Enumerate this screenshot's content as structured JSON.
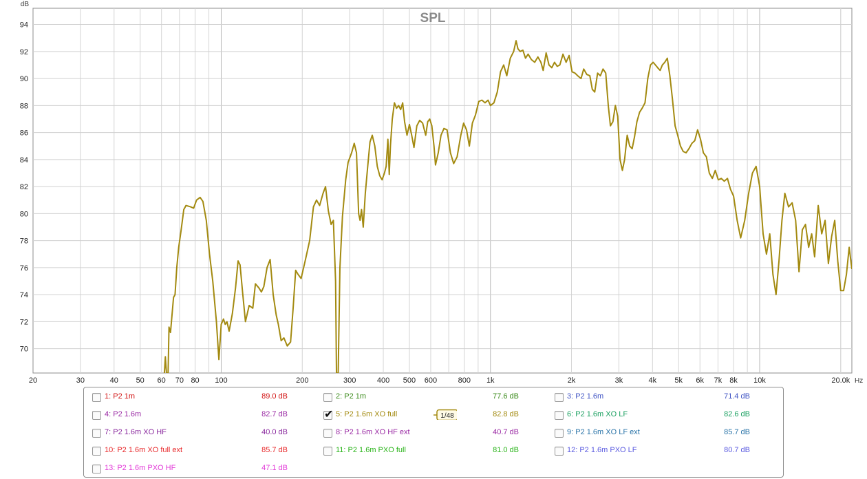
{
  "chart_data": {
    "type": "line",
    "title": "SPL",
    "ylabel": "dB",
    "xlabel": "Hz",
    "xscale": "log",
    "xlim": [
      20,
      20000
    ],
    "ylim": [
      68.2,
      95.2
    ],
    "x_ticks": [
      20,
      30,
      40,
      50,
      60,
      70,
      80,
      100,
      200,
      300,
      400,
      500,
      600,
      800,
      1000,
      2000,
      3000,
      4000,
      5000,
      6000,
      7000,
      8000,
      10000,
      20000
    ],
    "x_tick_labels": [
      "20",
      "30",
      "40",
      "50",
      "60",
      "70",
      "80",
      "100",
      "200",
      "300",
      "400",
      "500",
      "600",
      "800",
      "1k",
      "2k",
      "3k",
      "4k",
      "5k",
      "6k",
      "7k",
      "8k",
      "10k",
      "20.0k"
    ],
    "y_ticks": [
      70,
      72,
      74,
      76,
      78,
      80,
      82,
      84,
      86,
      88,
      90,
      92,
      94
    ],
    "y_tick_labels": [
      "70",
      "72",
      "74",
      "76",
      "78",
      "80",
      "82",
      "84",
      "86",
      "88",
      "90",
      "92",
      "94"
    ],
    "grid": true,
    "series": [
      {
        "name": "5: P2 1.6m XO full",
        "color": "#a38a10",
        "points": [
          [
            61.5,
            68.2
          ],
          [
            62.0,
            69.4
          ],
          [
            62.6,
            68.2
          ],
          [
            63.5,
            68.2
          ],
          [
            64.0,
            71.6
          ],
          [
            64.8,
            71.2
          ],
          [
            66.5,
            73.8
          ],
          [
            67.4,
            74.0
          ],
          [
            68.4,
            76.0
          ],
          [
            69.5,
            77.5
          ],
          [
            71.0,
            78.8
          ],
          [
            72.6,
            80.3
          ],
          [
            74.0,
            80.6
          ],
          [
            77.0,
            80.5
          ],
          [
            79.0,
            80.4
          ],
          [
            81.0,
            81.0
          ],
          [
            83.5,
            81.2
          ],
          [
            85.5,
            80.9
          ],
          [
            88.0,
            79.5
          ],
          [
            90.5,
            77.0
          ],
          [
            93.0,
            75.0
          ],
          [
            96.0,
            72.0
          ],
          [
            98.0,
            69.2
          ],
          [
            100.0,
            71.8
          ],
          [
            102.0,
            72.2
          ],
          [
            103.5,
            71.8
          ],
          [
            105.0,
            72.0
          ],
          [
            107.0,
            71.3
          ],
          [
            110.0,
            72.6
          ],
          [
            113.0,
            74.5
          ],
          [
            115.5,
            76.5
          ],
          [
            117.5,
            76.2
          ],
          [
            120.0,
            74.2
          ],
          [
            123.0,
            72.0
          ],
          [
            127.0,
            73.2
          ],
          [
            131.0,
            73.0
          ],
          [
            134.0,
            74.8
          ],
          [
            138.0,
            74.5
          ],
          [
            141.0,
            74.2
          ],
          [
            144.0,
            74.6
          ],
          [
            148.0,
            76.0
          ],
          [
            152.0,
            76.6
          ],
          [
            156.0,
            74.0
          ],
          [
            160.0,
            72.5
          ],
          [
            163.0,
            71.8
          ],
          [
            167.0,
            70.6
          ],
          [
            171.0,
            70.8
          ],
          [
            176.0,
            70.2
          ],
          [
            181.0,
            70.5
          ],
          [
            185.0,
            73.0
          ],
          [
            189.0,
            75.8
          ],
          [
            193.0,
            75.5
          ],
          [
            198.0,
            75.2
          ],
          [
            205.0,
            76.5
          ],
          [
            213.0,
            78.0
          ],
          [
            220.0,
            80.5
          ],
          [
            226.0,
            81.0
          ],
          [
            232.0,
            80.6
          ],
          [
            239.0,
            81.5
          ],
          [
            244.0,
            82.0
          ],
          [
            250.0,
            80.2
          ],
          [
            256.0,
            79.2
          ],
          [
            261.0,
            79.5
          ],
          [
            266.0,
            75.0
          ],
          [
            268.0,
            68.2
          ],
          [
            272.0,
            68.2
          ],
          [
            276.0,
            76.0
          ],
          [
            282.0,
            79.8
          ],
          [
            290.0,
            82.5
          ],
          [
            296.0,
            83.8
          ],
          [
            305.0,
            84.5
          ],
          [
            312.0,
            85.2
          ],
          [
            318.0,
            84.5
          ],
          [
            324.0,
            80.0
          ],
          [
            328.0,
            79.5
          ],
          [
            332.0,
            80.3
          ],
          [
            337.0,
            79.0
          ],
          [
            343.0,
            81.5
          ],
          [
            350.0,
            83.5
          ],
          [
            357.0,
            85.3
          ],
          [
            364.0,
            85.8
          ],
          [
            372.0,
            85.0
          ],
          [
            380.0,
            83.5
          ],
          [
            388.0,
            82.8
          ],
          [
            396.0,
            82.5
          ],
          [
            404.0,
            83.0
          ],
          [
            410.0,
            83.5
          ],
          [
            416.0,
            85.5
          ],
          [
            421.0,
            82.9
          ],
          [
            425.0,
            85.0
          ],
          [
            432.0,
            87.0
          ],
          [
            440.0,
            88.2
          ],
          [
            448.0,
            87.8
          ],
          [
            456.0,
            88.0
          ],
          [
            464.0,
            87.7
          ],
          [
            472.0,
            88.2
          ],
          [
            480.0,
            86.8
          ],
          [
            490.0,
            85.8
          ],
          [
            500.0,
            86.6
          ],
          [
            510.0,
            85.8
          ],
          [
            520.0,
            84.9
          ],
          [
            533.0,
            86.5
          ],
          [
            546.0,
            86.9
          ],
          [
            560.0,
            86.7
          ],
          [
            575.0,
            85.8
          ],
          [
            585.0,
            86.8
          ],
          [
            595.0,
            87.0
          ],
          [
            606.0,
            86.5
          ],
          [
            617.0,
            85.0
          ],
          [
            625.0,
            83.6
          ],
          [
            640.0,
            84.5
          ],
          [
            655.0,
            85.8
          ],
          [
            672.0,
            86.3
          ],
          [
            690.0,
            86.2
          ],
          [
            710.0,
            84.5
          ],
          [
            730.0,
            83.7
          ],
          [
            752.0,
            84.2
          ],
          [
            776.0,
            85.8
          ],
          [
            795.0,
            86.7
          ],
          [
            815.0,
            86.2
          ],
          [
            835.0,
            85.0
          ],
          [
            857.0,
            86.7
          ],
          [
            880.0,
            87.3
          ],
          [
            905.0,
            88.3
          ],
          [
            930.0,
            88.4
          ],
          [
            955.0,
            88.2
          ],
          [
            980.0,
            88.4
          ],
          [
            1000.0,
            88.0
          ],
          [
            1030.0,
            88.2
          ],
          [
            1060.0,
            89.0
          ],
          [
            1090.0,
            90.5
          ],
          [
            1120.0,
            91.0
          ],
          [
            1150.0,
            90.2
          ],
          [
            1185.0,
            91.5
          ],
          [
            1220.0,
            92.0
          ],
          [
            1245.0,
            92.8
          ],
          [
            1265.0,
            92.2
          ],
          [
            1290.0,
            92.0
          ],
          [
            1320.0,
            92.1
          ],
          [
            1350.0,
            91.5
          ],
          [
            1380.0,
            91.8
          ],
          [
            1420.0,
            91.4
          ],
          [
            1460.0,
            91.2
          ],
          [
            1500.0,
            91.6
          ],
          [
            1540.0,
            91.2
          ],
          [
            1570.0,
            90.6
          ],
          [
            1610.0,
            91.9
          ],
          [
            1650.0,
            91.0
          ],
          [
            1690.0,
            90.8
          ],
          [
            1730.0,
            91.2
          ],
          [
            1770.0,
            90.9
          ],
          [
            1810.0,
            91.0
          ],
          [
            1860.0,
            91.8
          ],
          [
            1910.0,
            91.2
          ],
          [
            1960.0,
            91.7
          ],
          [
            2010.0,
            90.5
          ],
          [
            2060.0,
            90.4
          ],
          [
            2110.0,
            90.2
          ],
          [
            2170.0,
            90.0
          ],
          [
            2220.0,
            90.7
          ],
          [
            2280.0,
            90.3
          ],
          [
            2340.0,
            90.2
          ],
          [
            2390.0,
            89.2
          ],
          [
            2440.0,
            89.0
          ],
          [
            2500.0,
            90.4
          ],
          [
            2560.0,
            90.2
          ],
          [
            2620.0,
            90.7
          ],
          [
            2680.0,
            90.4
          ],
          [
            2740.0,
            88.0
          ],
          [
            2790.0,
            86.5
          ],
          [
            2850.0,
            86.8
          ],
          [
            2910.0,
            88.0
          ],
          [
            2970.0,
            87.2
          ],
          [
            3030.0,
            84.0
          ],
          [
            3090.0,
            83.2
          ],
          [
            3150.0,
            84.0
          ],
          [
            3220.0,
            85.8
          ],
          [
            3290.0,
            85.0
          ],
          [
            3360.0,
            84.8
          ],
          [
            3430.0,
            85.7
          ],
          [
            3500.0,
            86.8
          ],
          [
            3580.0,
            87.5
          ],
          [
            3660.0,
            87.8
          ],
          [
            3750.0,
            88.2
          ],
          [
            3840.0,
            90.0
          ],
          [
            3930.0,
            91.0
          ],
          [
            4020.0,
            91.2
          ],
          [
            4100.0,
            91.0
          ],
          [
            4180.0,
            90.8
          ],
          [
            4270.0,
            90.6
          ],
          [
            4350.0,
            91.0
          ],
          [
            4440.0,
            91.2
          ],
          [
            4540.0,
            91.5
          ],
          [
            4640.0,
            90.2
          ],
          [
            4740.0,
            88.5
          ],
          [
            4850.0,
            86.5
          ],
          [
            4960.0,
            85.8
          ],
          [
            5080.0,
            85.0
          ],
          [
            5200.0,
            84.6
          ],
          [
            5330.0,
            84.5
          ],
          [
            5460.0,
            84.8
          ],
          [
            5600.0,
            85.2
          ],
          [
            5740.0,
            85.4
          ],
          [
            5880.0,
            86.2
          ],
          [
            6030.0,
            85.5
          ],
          [
            6180.0,
            84.5
          ],
          [
            6340.0,
            84.2
          ],
          [
            6500.0,
            83.0
          ],
          [
            6670.0,
            82.6
          ],
          [
            6840.0,
            83.2
          ],
          [
            7020.0,
            82.5
          ],
          [
            7200.0,
            82.6
          ],
          [
            7390.0,
            82.4
          ],
          [
            7590.0,
            82.6
          ],
          [
            7790.0,
            81.8
          ],
          [
            8000.0,
            81.3
          ],
          [
            8250.0,
            79.5
          ],
          [
            8500.0,
            78.2
          ],
          [
            8800.0,
            79.5
          ],
          [
            9100.0,
            81.5
          ],
          [
            9400.0,
            83.0
          ],
          [
            9700.0,
            83.5
          ],
          [
            10000.0,
            82.0
          ],
          [
            10300.0,
            78.5
          ],
          [
            10600.0,
            77.0
          ],
          [
            10900.0,
            78.5
          ],
          [
            11200.0,
            75.5
          ],
          [
            11500.0,
            74.0
          ],
          [
            11800.0,
            76.5
          ],
          [
            12100.0,
            79.5
          ],
          [
            12400.0,
            81.5
          ],
          [
            12800.0,
            80.5
          ],
          [
            13200.0,
            80.8
          ],
          [
            13600.0,
            79.5
          ],
          [
            14000.0,
            75.7
          ],
          [
            14400.0,
            78.8
          ],
          [
            14800.0,
            79.2
          ],
          [
            15200.0,
            77.5
          ],
          [
            15600.0,
            78.5
          ],
          [
            16000.0,
            76.8
          ],
          [
            16500.0,
            80.6
          ],
          [
            17000.0,
            78.5
          ],
          [
            17500.0,
            79.5
          ],
          [
            18000.0,
            76.3
          ],
          [
            18500.0,
            78.3
          ],
          [
            19000.0,
            79.5
          ],
          [
            19500.0,
            76.5
          ],
          [
            20000.0,
            74.3
          ],
          [
            20500.0,
            74.3
          ],
          [
            21000.0,
            75.5
          ],
          [
            21500.0,
            77.5
          ],
          [
            22000.0,
            75.9
          ]
        ]
      }
    ]
  },
  "legend": {
    "smoothing_label": "1/48",
    "items": [
      {
        "label": "1: P2 1m",
        "value": "89.0 dB",
        "color": "#d21414",
        "checked": false
      },
      {
        "label": "2: P2 1m",
        "value": "77.6 dB",
        "color": "#3a8a1a",
        "checked": false
      },
      {
        "label": "3: P2 1.6m",
        "value": "71.4 dB",
        "color": "#4054c4",
        "checked": false
      },
      {
        "label": "4: P2 1.6m",
        "value": "82.7 dB",
        "color": "#9a2aa4",
        "checked": false
      },
      {
        "label": "5: P2 1.6m XO full",
        "value": "82.8 dB",
        "color": "#a38a10",
        "checked": true
      },
      {
        "label": "6: P2 1.6m XO LF",
        "value": "82.6 dB",
        "color": "#1aa060",
        "checked": false
      },
      {
        "label": "7: P2 1.6m XO HF",
        "value": "40.0 dB",
        "color": "#8a2a9e",
        "checked": false
      },
      {
        "label": "8: P2 1.6m XO HF ext",
        "value": "40.7 dB",
        "color": "#9a2aa4",
        "checked": false
      },
      {
        "label": "9: P2 1.6m XO LF ext",
        "value": "85.7 dB",
        "color": "#2a74a8",
        "checked": false
      },
      {
        "label": "10: P2 1.6m XO full ext",
        "value": "85.7 dB",
        "color": "#e8282a",
        "checked": false
      },
      {
        "label": "11: P2 1.6m PXO full",
        "value": "81.0 dB",
        "color": "#2ab41a",
        "checked": false
      },
      {
        "label": "12: P2 1.6m PXO LF",
        "value": "80.7 dB",
        "color": "#5a5ae0",
        "checked": false
      },
      {
        "label": "13: P2 1.6m PXO HF",
        "value": "47.1 dB",
        "color": "#e23ad8",
        "checked": false
      }
    ]
  }
}
